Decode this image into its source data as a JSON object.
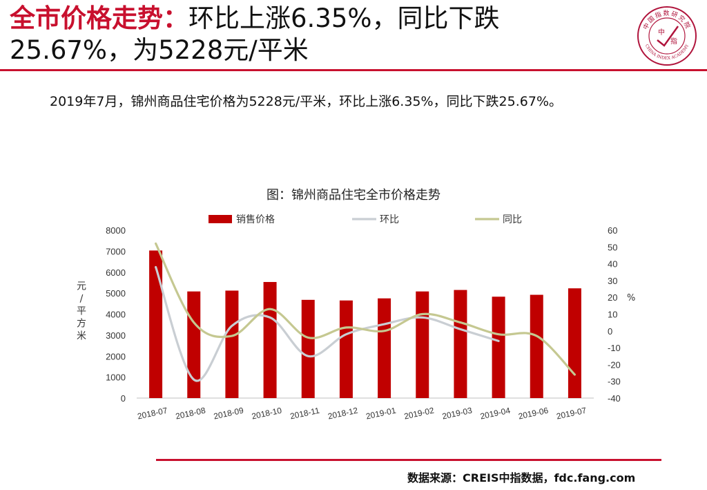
{
  "header": {
    "title_part1": "全市价格走势：",
    "title_part2": "环比上涨6.35%，同比下跌",
    "title_line2": "25.67%，为5228元/平米",
    "accent_color": "#c8102e"
  },
  "logo": {
    "icon": "china-index-academy-seal",
    "top_text": "中国指数研究院",
    "center_text_1": "中",
    "center_text_2": "指",
    "bottom_text": "CHINA INDEX ACADEMY"
  },
  "summary": "2019年7月，锦州商品住宅价格为5228元/平米，环比上涨6.35%，同比下跌25.67%。",
  "chart_title": "图：锦州商品住宅全市价格走势",
  "chart_data": {
    "type": "bar",
    "categories": [
      "2018-07",
      "2018-08",
      "2018-09",
      "2018-10",
      "2018-11",
      "2018-12",
      "2019-01",
      "2019-02",
      "2019-03",
      "2019-04",
      "2019-06",
      "2019-07"
    ],
    "series": [
      {
        "name": "销售价格",
        "type": "bar",
        "axis": "left",
        "color": "#c00000",
        "values": [
          7030,
          5080,
          5120,
          5530,
          4680,
          4650,
          4750,
          5080,
          5150,
          4830,
          4920,
          5228
        ]
      },
      {
        "name": "环比",
        "type": "line",
        "axis": "right",
        "color": "#c9ced3",
        "values": [
          38,
          -29,
          3,
          8,
          -15,
          -2,
          4,
          8,
          1,
          -6,
          null,
          null
        ]
      },
      {
        "name": "同比",
        "type": "line",
        "axis": "right",
        "color": "#c5c891",
        "values": [
          52,
          5,
          -3,
          13,
          -4,
          2,
          0,
          10,
          5,
          -2,
          -3,
          -26
        ]
      }
    ],
    "ylabel": "元/平方米",
    "ylim": [
      0,
      8000
    ],
    "yticks": [
      0,
      1000,
      2000,
      3000,
      4000,
      5000,
      6000,
      7000,
      8000
    ],
    "y2label": "%",
    "y2lim": [
      -40,
      60
    ],
    "y2ticks": [
      -40,
      -30,
      -20,
      -10,
      0,
      10,
      20,
      30,
      40,
      50,
      60
    ],
    "legend_position": "top",
    "grid": false
  },
  "footer": {
    "source": "数据来源：CREIS中指数据，fdc.fang.com"
  }
}
